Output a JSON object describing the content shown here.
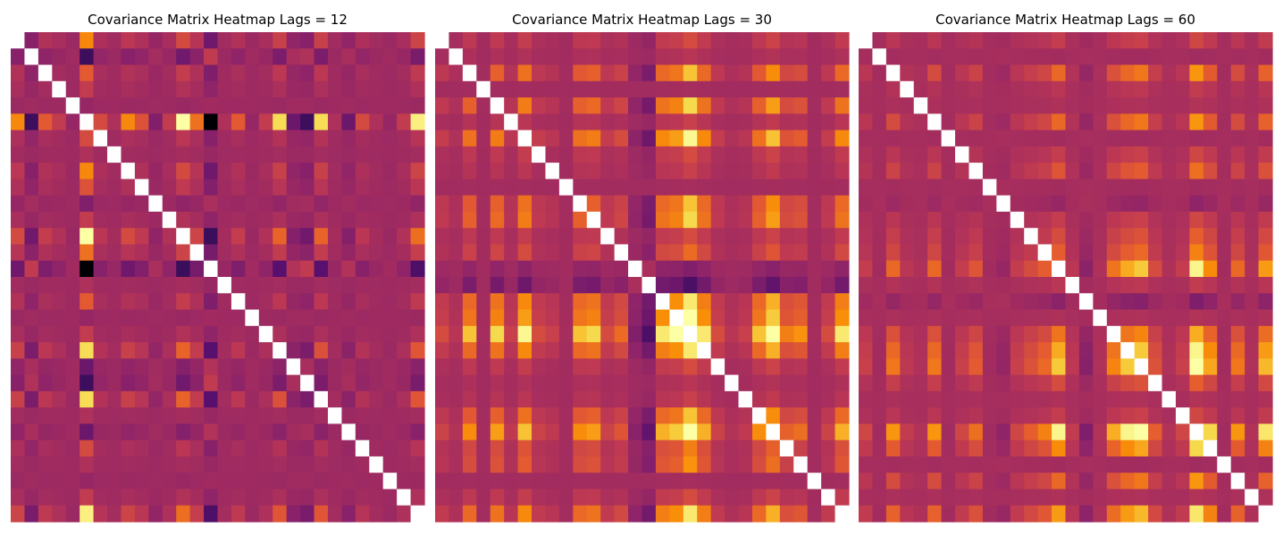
{
  "figure": {
    "titles": [
      "Covariance Matrix Heatmap Lags = 12",
      "Covariance Matrix Heatmap Lags = 30",
      "Covariance Matrix Heatmap Lags = 60"
    ]
  },
  "chart_data": [
    {
      "type": "heatmap",
      "title": "Covariance Matrix Heatmap Lags = 12",
      "xlabel": "",
      "ylabel": "",
      "n": 30,
      "colormap": "inferno",
      "diagonal_color": "#ffffff",
      "base_value": 0.45,
      "row_profile": [
        0.5,
        0.3,
        0.46,
        0.42,
        0.38,
        0.88,
        0.44,
        0.4,
        0.5,
        0.45,
        0.36,
        0.42,
        0.62,
        0.48,
        0.2,
        0.4,
        0.46,
        0.38,
        0.42,
        0.56,
        0.34,
        0.3,
        0.56,
        0.4,
        0.34,
        0.44,
        0.4,
        0.38,
        0.42,
        0.58
      ]
    },
    {
      "type": "heatmap",
      "title": "Covariance Matrix Heatmap Lags = 30",
      "xlabel": "",
      "ylabel": "",
      "n": 30,
      "colormap": "inferno",
      "diagonal_color": "#ffffff",
      "base_value": 0.46,
      "row_profile": [
        0.46,
        0.42,
        0.58,
        0.4,
        0.6,
        0.44,
        0.64,
        0.46,
        0.44,
        0.4,
        0.58,
        0.6,
        0.46,
        0.5,
        0.36,
        0.3,
        0.62,
        0.65,
        0.8,
        0.62,
        0.46,
        0.42,
        0.44,
        0.58,
        0.7,
        0.52,
        0.54,
        0.4,
        0.46,
        0.62
      ]
    },
    {
      "type": "heatmap",
      "title": "Covariance Matrix Heatmap Lags = 60",
      "xlabel": "",
      "ylabel": "",
      "n": 30,
      "colormap": "inferno",
      "diagonal_color": "#ffffff",
      "base_value": 0.47,
      "row_profile": [
        0.46,
        0.4,
        0.56,
        0.44,
        0.42,
        0.56,
        0.4,
        0.46,
        0.52,
        0.4,
        0.38,
        0.46,
        0.5,
        0.54,
        0.66,
        0.44,
        0.36,
        0.42,
        0.58,
        0.66,
        0.7,
        0.5,
        0.42,
        0.46,
        0.78,
        0.62,
        0.4,
        0.56,
        0.42,
        0.64
      ]
    }
  ]
}
